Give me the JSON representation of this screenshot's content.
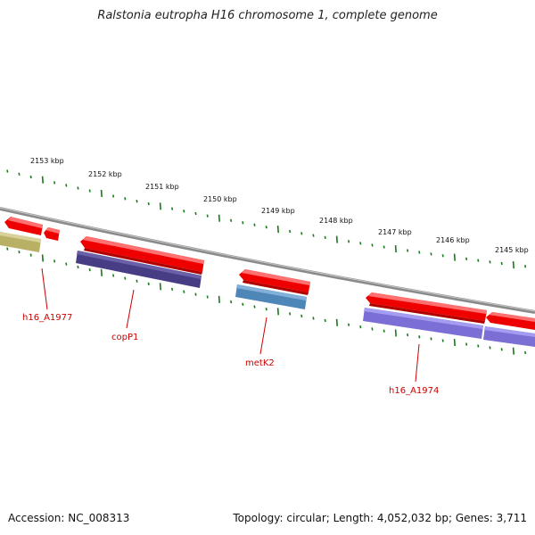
{
  "title": "Ralstonia eutropha H16 chromosome 1, complete genome",
  "footer": {
    "accession": "Accession: NC_008313",
    "summary": "Topology: circular; Length: 4,052,032 bp; Genes: 3,711"
  },
  "ruler_labels": [
    "2153 kbp",
    "2152 kbp",
    "2151 kbp",
    "2150 kbp",
    "2149 kbp",
    "2148 kbp",
    "2147 kbp",
    "2146 kbp",
    "2145 kbp"
  ],
  "gene_labels": [
    "h16_A1977",
    "copP1",
    "metK2",
    "h16_A1974"
  ],
  "colors": {
    "backbone": "#8a8a8a",
    "tick": "#1a7a1a",
    "gene_red": "#ee0000",
    "label_red": "#cc0000",
    "cds_purple_dark": "#473d85",
    "cds_blue": "#4f86b8",
    "cds_purple_light": "#7b6fd6",
    "cds_olive": "#b8b064"
  }
}
